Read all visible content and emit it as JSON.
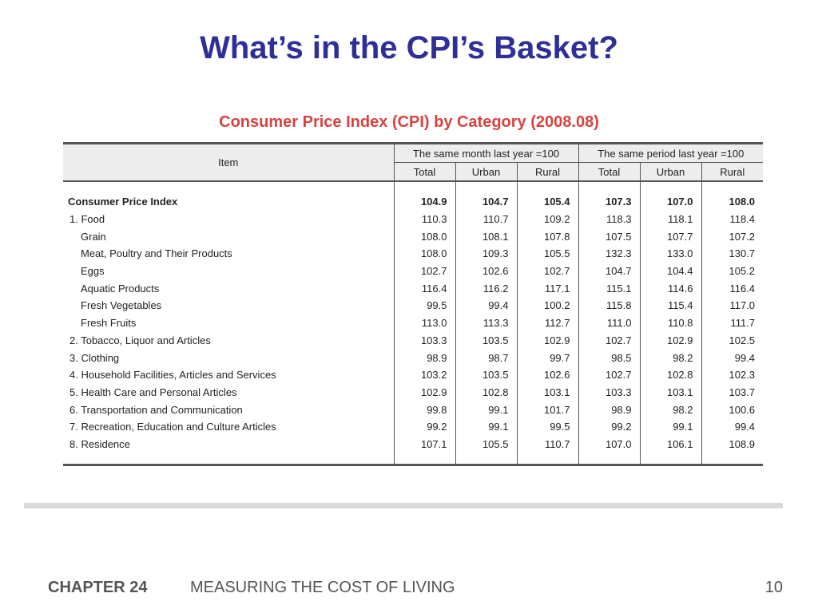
{
  "slide": {
    "title": "What’s in the CPI’s Basket?"
  },
  "table": {
    "title": "Consumer Price Index (CPI) by Category (2008.08)",
    "item_header": "Item",
    "group_headers": [
      "The same month last year =100",
      "The same period last year =100"
    ],
    "sub_headers": [
      "Total",
      "Urban",
      "Rural",
      "Total",
      "Urban",
      "Rural"
    ],
    "rows": [
      {
        "label": "Consumer Price Index",
        "level": "total",
        "values": [
          "104.9",
          "104.7",
          "105.4",
          "107.3",
          "107.0",
          "108.0"
        ]
      },
      {
        "label": "1. Food",
        "level": "category",
        "values": [
          "110.3",
          "110.7",
          "109.2",
          "118.3",
          "118.1",
          "118.4"
        ]
      },
      {
        "label": "Grain",
        "level": "sub",
        "values": [
          "108.0",
          "108.1",
          "107.8",
          "107.5",
          "107.7",
          "107.2"
        ]
      },
      {
        "label": "Meat, Poultry and Their Products",
        "level": "sub",
        "values": [
          "108.0",
          "109.3",
          "105.5",
          "132.3",
          "133.0",
          "130.7"
        ]
      },
      {
        "label": "Eggs",
        "level": "sub",
        "values": [
          "102.7",
          "102.6",
          "102.7",
          "104.7",
          "104.4",
          "105.2"
        ]
      },
      {
        "label": "Aquatic Products",
        "level": "sub",
        "values": [
          "116.4",
          "116.2",
          "117.1",
          "115.1",
          "114.6",
          "116.4"
        ]
      },
      {
        "label": "Fresh Vegetables",
        "level": "sub",
        "values": [
          "99.5",
          "99.4",
          "100.2",
          "115.8",
          "115.4",
          "117.0"
        ]
      },
      {
        "label": "Fresh Fruits",
        "level": "sub",
        "values": [
          "113.0",
          "113.3",
          "112.7",
          "111.0",
          "110.8",
          "111.7"
        ]
      },
      {
        "label": "2. Tobacco, Liquor and Articles",
        "level": "category",
        "values": [
          "103.3",
          "103.5",
          "102.9",
          "102.7",
          "102.9",
          "102.5"
        ]
      },
      {
        "label": "3. Clothing",
        "level": "category",
        "values": [
          "98.9",
          "98.7",
          "99.7",
          "98.5",
          "98.2",
          "99.4"
        ]
      },
      {
        "label": "4. Household Facilities, Articles and Services",
        "level": "category",
        "values": [
          "103.2",
          "103.5",
          "102.6",
          "102.7",
          "102.8",
          "102.3"
        ]
      },
      {
        "label": "5. Health Care and Personal Articles",
        "level": "category",
        "values": [
          "102.9",
          "102.8",
          "103.1",
          "103.3",
          "103.1",
          "103.7"
        ]
      },
      {
        "label": "6. Transportation and Communication",
        "level": "category",
        "values": [
          "99.8",
          "99.1",
          "101.7",
          "98.9",
          "98.2",
          "100.6"
        ]
      },
      {
        "label": "7. Recreation, Education and Culture Articles",
        "level": "category",
        "values": [
          "99.2",
          "99.1",
          "99.5",
          "99.2",
          "99.1",
          "99.4"
        ]
      },
      {
        "label": "8. Residence",
        "level": "category",
        "values": [
          "107.1",
          "105.5",
          "110.7",
          "107.0",
          "106.1",
          "108.9"
        ]
      }
    ]
  },
  "footer": {
    "chapter": "CHAPTER 24",
    "chapter_title": "MEASURING THE COST OF LIVING",
    "page_number": "10"
  }
}
